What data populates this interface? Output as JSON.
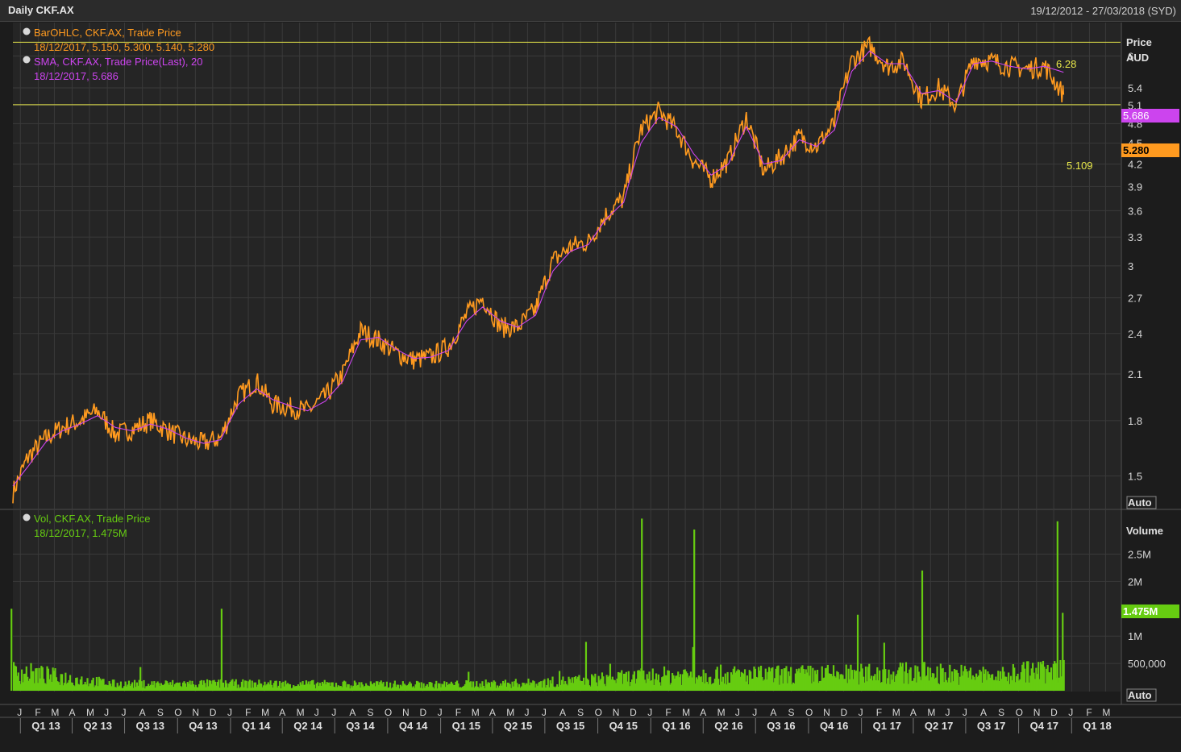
{
  "window": {
    "title": "Daily CKF.AX",
    "date_range": "19/12/2012 - 27/03/2018 (SYD)"
  },
  "colors": {
    "price": "#ff9a1f",
    "sma": "#cc44ee",
    "volume": "#66cc11",
    "hline": "#e8e84a",
    "grid": "#3a3a3a",
    "background": "#252525"
  },
  "legend": {
    "ohlc_title": "BarOHLC, CKF.AX, Trade Price",
    "ohlc_values": "18/12/2017, 5.150, 5.300, 5.140, 5.280",
    "sma_title": "SMA, CKF.AX, Trade Price(Last),  20",
    "sma_values": "18/12/2017, 5.686",
    "vol_title": "Vol, CKF.AX, Trade Price",
    "vol_values": "18/12/2017, 1.475M"
  },
  "price_axis": {
    "title_line1": "Price",
    "title_line2": "AUD",
    "auto_label": "Auto",
    "sma_badge": "5.686",
    "last_badge": "5.280",
    "hline_high_label": "6.28",
    "hline_low_label": "5.109"
  },
  "volume_axis": {
    "title": "Volume",
    "auto_label": "Auto",
    "last_badge": "1.475M"
  },
  "chart_data": {
    "type": "line",
    "price_ticks": [
      "1.5",
      "1.8",
      "2.1",
      "2.4",
      "2.7",
      "3",
      "3.3",
      "3.6",
      "3.9",
      "4.2",
      "4.5",
      "4.8",
      "5.1",
      "5.4",
      "6"
    ],
    "price_tick_values": [
      1.5,
      1.8,
      2.1,
      2.4,
      2.7,
      3.0,
      3.3,
      3.6,
      3.9,
      4.2,
      4.5,
      4.8,
      5.1,
      5.4,
      6.0
    ],
    "price_range": [
      1.35,
      6.7
    ],
    "volume_ticks": [
      "500,000",
      "1M",
      "2M",
      "2.5M"
    ],
    "volume_tick_values": [
      500000,
      1000000,
      2000000,
      2500000
    ],
    "volume_range": [
      0,
      3200000
    ],
    "horizontal_lines": [
      6.28,
      5.109
    ],
    "x_months": [
      "J",
      "F",
      "M",
      "A",
      "M",
      "J",
      "J",
      "A",
      "S",
      "O",
      "N",
      "D",
      "J",
      "F",
      "M",
      "A",
      "M",
      "J",
      "J",
      "A",
      "S",
      "O",
      "N",
      "D",
      "J",
      "F",
      "M",
      "A",
      "M",
      "J",
      "J",
      "A",
      "S",
      "O",
      "N",
      "D",
      "J",
      "F",
      "M",
      "A",
      "M",
      "J",
      "J",
      "A",
      "S",
      "O",
      "N",
      "D",
      "J",
      "F",
      "M",
      "A",
      "M",
      "J",
      "J",
      "A",
      "S",
      "O",
      "N",
      "D",
      "J",
      "F",
      "M"
    ],
    "x_quarters": [
      "Q1 13",
      "Q2 13",
      "Q3 13",
      "Q4 13",
      "Q1 14",
      "Q2 14",
      "Q3 14",
      "Q4 14",
      "Q1 15",
      "Q2 15",
      "Q3 15",
      "Q4 15",
      "Q1 16",
      "Q2 16",
      "Q3 16",
      "Q4 16",
      "Q1 17",
      "Q2 17",
      "Q3 17",
      "Q4 17",
      "Q1 18"
    ],
    "price_series": {
      "name": "CKF.AX Trade Price",
      "x": [
        "2012-12",
        "2013-01",
        "2013-02",
        "2013-03",
        "2013-04",
        "2013-05",
        "2013-06",
        "2013-07",
        "2013-08",
        "2013-09",
        "2013-10",
        "2013-11",
        "2013-12",
        "2014-01",
        "2014-02",
        "2014-03",
        "2014-04",
        "2014-05",
        "2014-06",
        "2014-07",
        "2014-08",
        "2014-09",
        "2014-10",
        "2014-11",
        "2014-12",
        "2015-01",
        "2015-02",
        "2015-03",
        "2015-04",
        "2015-05",
        "2015-06",
        "2015-07",
        "2015-08",
        "2015-09",
        "2015-10",
        "2015-11",
        "2015-12",
        "2016-01",
        "2016-02",
        "2016-03",
        "2016-04",
        "2016-05",
        "2016-06",
        "2016-07",
        "2016-08",
        "2016-09",
        "2016-10",
        "2016-11",
        "2016-12",
        "2017-01",
        "2017-02",
        "2017-03",
        "2017-04",
        "2017-05",
        "2017-06",
        "2017-07",
        "2017-08",
        "2017-09",
        "2017-10",
        "2017-11",
        "2017-12"
      ],
      "values": [
        1.42,
        1.6,
        1.7,
        1.76,
        1.8,
        1.86,
        1.72,
        1.75,
        1.8,
        1.74,
        1.69,
        1.67,
        1.7,
        1.95,
        2.05,
        1.9,
        1.88,
        1.86,
        1.95,
        2.1,
        2.42,
        2.35,
        2.25,
        2.2,
        2.22,
        2.3,
        2.55,
        2.7,
        2.45,
        2.45,
        2.6,
        3.05,
        3.2,
        3.25,
        3.55,
        3.75,
        4.7,
        5.0,
        4.7,
        4.25,
        4.0,
        4.25,
        4.9,
        4.1,
        4.3,
        4.6,
        4.45,
        4.8,
        5.9,
        6.2,
        5.8,
        5.9,
        5.2,
        5.4,
        5.1,
        5.95,
        5.9,
        5.8,
        5.75,
        5.8,
        5.28
      ]
    },
    "sma_series": {
      "name": "SMA 20",
      "x": [
        "2012-12",
        "2013-01",
        "2013-02",
        "2013-03",
        "2013-04",
        "2013-05",
        "2013-06",
        "2013-07",
        "2013-08",
        "2013-09",
        "2013-10",
        "2013-11",
        "2013-12",
        "2014-01",
        "2014-02",
        "2014-03",
        "2014-04",
        "2014-05",
        "2014-06",
        "2014-07",
        "2014-08",
        "2014-09",
        "2014-10",
        "2014-11",
        "2014-12",
        "2015-01",
        "2015-02",
        "2015-03",
        "2015-04",
        "2015-05",
        "2015-06",
        "2015-07",
        "2015-08",
        "2015-09",
        "2015-10",
        "2015-11",
        "2015-12",
        "2016-01",
        "2016-02",
        "2016-03",
        "2016-04",
        "2016-05",
        "2016-06",
        "2016-07",
        "2016-08",
        "2016-09",
        "2016-10",
        "2016-11",
        "2016-12",
        "2017-01",
        "2017-02",
        "2017-03",
        "2017-04",
        "2017-05",
        "2017-06",
        "2017-07",
        "2017-08",
        "2017-09",
        "2017-10",
        "2017-11",
        "2017-12"
      ],
      "values": [
        1.45,
        1.55,
        1.68,
        1.74,
        1.78,
        1.83,
        1.76,
        1.74,
        1.78,
        1.75,
        1.7,
        1.67,
        1.69,
        1.9,
        2.0,
        1.93,
        1.89,
        1.86,
        1.92,
        2.05,
        2.35,
        2.37,
        2.28,
        2.21,
        2.22,
        2.27,
        2.5,
        2.62,
        2.5,
        2.45,
        2.55,
        2.95,
        3.15,
        3.22,
        3.5,
        3.7,
        4.5,
        4.9,
        4.75,
        4.35,
        4.05,
        4.2,
        4.75,
        4.2,
        4.25,
        4.55,
        4.45,
        4.7,
        5.7,
        6.1,
        5.85,
        5.85,
        5.3,
        5.35,
        5.15,
        5.85,
        5.9,
        5.8,
        5.75,
        5.8,
        5.686
      ]
    },
    "volume_series": {
      "name": "Vol",
      "x": [
        "2012-12",
        "2013-06",
        "2013-12",
        "2014-06",
        "2014-12",
        "2015-06",
        "2015-12",
        "2016-03",
        "2016-06",
        "2016-12",
        "2017-04",
        "2017-09",
        "2017-12"
      ],
      "values": [
        350000,
        120000,
        130000,
        120000,
        110000,
        140000,
        250000,
        300000,
        280000,
        300000,
        330000,
        260000,
        1475000
      ]
    },
    "volume_spikes": [
      {
        "x": "2012-12",
        "value": 1500000
      },
      {
        "x": "2013-12",
        "value": 1500000
      },
      {
        "x": "2015-12",
        "value": 3150000
      },
      {
        "x": "2016-03",
        "value": 2950000
      },
      {
        "x": "2017-04",
        "value": 2200000
      },
      {
        "x": "2017-12",
        "value": 3100000
      }
    ]
  }
}
